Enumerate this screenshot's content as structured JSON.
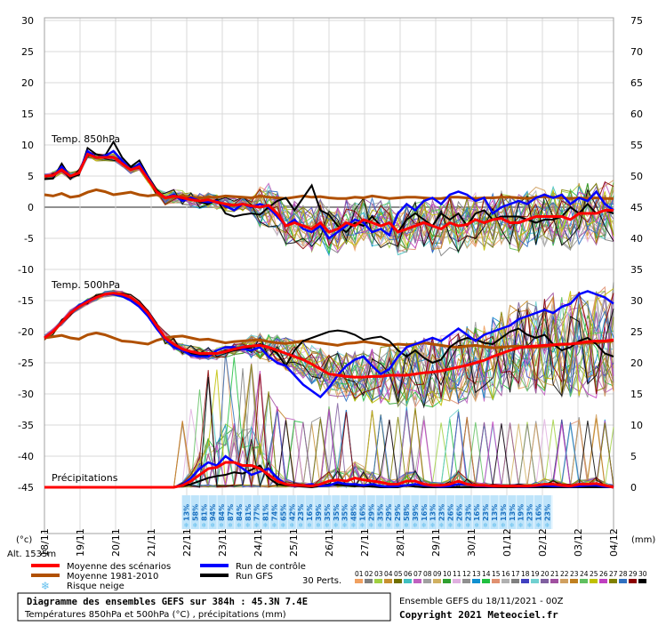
{
  "chart_data": {
    "type": "line",
    "title": "Diagramme des ensembles GEFS sur 384h : 45.3N 7.4E",
    "subtitle": "Températures 850hPa et 500hPa (°C) , précipitations (mm)",
    "run_label": "Ensemble GEFS du 18/11/2021 - 00Z",
    "copyright": "Copyright 2021 Meteociel.fr",
    "altitude_label": "Alt. 1535m",
    "left_unit": "(°c)",
    "right_unit": "(mm)",
    "left_axis": {
      "ticks": [
        30,
        25,
        20,
        15,
        10,
        5,
        0,
        -5,
        -10,
        -15,
        -20,
        -25,
        -30,
        -35,
        -40,
        -45
      ],
      "range": [
        -45,
        30
      ]
    },
    "right_axis": {
      "ticks": [
        75,
        70,
        65,
        60,
        55,
        50,
        45,
        40,
        35,
        30,
        25,
        20,
        15,
        10,
        5,
        0
      ],
      "range": [
        0,
        75
      ]
    },
    "x_labels": [
      "18/11",
      "19/11",
      "20/11",
      "21/11",
      "22/11",
      "23/11",
      "24/11",
      "25/11",
      "26/11",
      "27/11",
      "28/11",
      "29/11",
      "30/11",
      "01/12",
      "02/12",
      "03/12",
      "04/12"
    ],
    "panel_labels": {
      "t850": "Temp. 850hPa",
      "t500": "Temp. 500hPa",
      "precip": "Précipitations"
    },
    "snow_risk": [
      "13%",
      "58%",
      "81%",
      "94%",
      "84%",
      "87%",
      "84%",
      "81%",
      "77%",
      "81%",
      "74%",
      "65%",
      "42%",
      "23%",
      "16%",
      "39%",
      "35%",
      "35%",
      "35%",
      "48%",
      "16%",
      "29%",
      "35%",
      "29%",
      "29%",
      "58%",
      "39%",
      "16%",
      "13%",
      "23%",
      "26%",
      "26%",
      "23%",
      "16%",
      "23%",
      "13%",
      "13%",
      "13%",
      "19%",
      "23%",
      "16%",
      "23%"
    ],
    "t850_mean": [
      5,
      5.1,
      6,
      5,
      5.5,
      8.5,
      8,
      8,
      8,
      7,
      6,
      6.5,
      4.5,
      2.5,
      1.5,
      1.8,
      1.5,
      1.2,
      1,
      1.2,
      0.8,
      0.5,
      0.3,
      0.5,
      0.2,
      0,
      0.3,
      -1,
      -3,
      -2.5,
      -3,
      -3.5,
      -2.5,
      -4,
      -3.5,
      -2.5,
      -3,
      -2,
      -2.5,
      -3,
      -2.5,
      -4,
      -3.5,
      -3,
      -2.5,
      -3,
      -3.5,
      -2.5,
      -3,
      -2.8,
      -2,
      -2.5,
      -2,
      -1.8,
      -2.5,
      -2.5,
      -2,
      -1.5,
      -1.5,
      -1.5,
      -1.5,
      -2,
      -1,
      -1,
      -1,
      -0.5,
      -0.5
    ],
    "t850_gfs": [
      4.5,
      4.6,
      7,
      4.8,
      5.2,
      9.5,
      8.5,
      8.2,
      10.5,
      8,
      6.5,
      7.5,
      5,
      2.8,
      1.5,
      2,
      1.3,
      1.5,
      0.8,
      0.5,
      1.2,
      -1,
      -1.5,
      -1.2,
      -1,
      -1.2,
      0,
      1,
      1.5,
      -0.5,
      1.5,
      3.5,
      -0.5,
      -1.2,
      -3,
      -4,
      -2.5,
      -3,
      -1.5,
      -3,
      -2.5,
      -4,
      -2,
      -1,
      -2,
      -3,
      -1,
      -2,
      -1,
      -3,
      -1,
      -0.5,
      -2,
      -1.5,
      -1.5,
      -1.5,
      -2,
      -2.5,
      -2,
      -2,
      -1.5,
      0,
      -1,
      0.5,
      -1,
      -0.5,
      -1
    ],
    "t850_control": [
      5,
      5,
      6.5,
      5,
      5.5,
      9,
      8,
      8.2,
      9,
      7.5,
      6,
      7,
      4.8,
      2.5,
      1.5,
      2,
      1,
      1.5,
      1,
      0.8,
      1,
      0.2,
      -0.5,
      0.5,
      0,
      0.5,
      0,
      -1.5,
      -3,
      -2,
      -3.5,
      -4,
      -3,
      -5,
      -4,
      -3,
      -2,
      -2.5,
      -4,
      -3.5,
      -4.5,
      -1,
      0.5,
      -0.5,
      1,
      1.5,
      0.5,
      2,
      2.5,
      2,
      1,
      1.5,
      -1,
      0,
      0.5,
      1,
      0.5,
      1.5,
      2,
      1.5,
      2,
      0.5,
      1.5,
      1,
      2.5,
      0.5,
      -0.5
    ],
    "t850_clim": [
      2,
      1.8,
      2.2,
      1.6,
      1.8,
      2.4,
      2.8,
      2.5,
      2,
      2.2,
      2.4,
      2,
      1.8,
      2,
      1.5,
      1.6,
      1.8,
      1.6,
      1.5,
      1.6,
      1.6,
      1.8,
      1.7,
      1.6,
      1.5,
      1.8,
      1.6,
      1.5,
      1.4,
      1.6,
      1.8,
      1.6,
      1.7,
      1.5,
      1.4,
      1.4,
      1.6,
      1.5,
      1.8,
      1.6,
      1.4,
      1.5,
      1.6,
      1.6,
      1.5,
      1.4,
      1.4,
      1.6,
      1.6,
      1.5,
      1.4,
      1.5,
      1.5,
      1.6,
      1.6,
      1.5,
      1.4,
      1.6,
      1.7,
      1.6,
      1.5,
      1.4,
      1.5,
      1.4,
      1.5,
      1.4,
      1.4
    ],
    "t500_mean": [
      -21,
      -20,
      -18.5,
      -17,
      -16,
      -15.2,
      -14.5,
      -14,
      -13.8,
      -14,
      -14.5,
      -15.5,
      -17,
      -19,
      -21,
      -22,
      -22.8,
      -23.2,
      -23.5,
      -23.5,
      -23.5,
      -23.2,
      -22.8,
      -22.5,
      -22.3,
      -22.2,
      -22.5,
      -23,
      -23.5,
      -24,
      -24.5,
      -25.2,
      -26,
      -26.8,
      -27,
      -27.2,
      -27.3,
      -27.3,
      -27.2,
      -27.2,
      -27,
      -27,
      -27,
      -26.8,
      -26.6,
      -26.5,
      -26.3,
      -26,
      -25.7,
      -25.4,
      -25,
      -24.6,
      -24,
      -23.5,
      -23,
      -22.6,
      -22.4,
      -22.3,
      -22.2,
      -22.1,
      -22,
      -22,
      -21.8,
      -21.6,
      -21.5,
      -21.5,
      -21.3
    ],
    "t500_gfs": [
      -21,
      -20,
      -18.5,
      -17,
      -15.8,
      -15,
      -14.3,
      -14,
      -14,
      -14.2,
      -15,
      -16,
      -17.5,
      -19.5,
      -21,
      -22.2,
      -22.8,
      -23.5,
      -23.8,
      -23.8,
      -23.5,
      -23,
      -23,
      -22.8,
      -22.5,
      -22,
      -22.5,
      -23.5,
      -25.5,
      -23,
      -21.5,
      -21,
      -20.5,
      -20,
      -19.8,
      -20,
      -20.5,
      -21.3,
      -21,
      -20.8,
      -21.5,
      -23,
      -24,
      -23,
      -24.2,
      -25,
      -24.5,
      -22.5,
      -21.5,
      -21,
      -21.3,
      -21.8,
      -22,
      -21,
      -20,
      -19.5,
      -20.5,
      -21,
      -20.5,
      -22,
      -23,
      -22.5,
      -21.5,
      -21,
      -22,
      -23.5,
      -24
    ],
    "t500_control": [
      -21,
      -20,
      -18.5,
      -17,
      -15.8,
      -15,
      -14.5,
      -14,
      -14,
      -14.3,
      -15,
      -16,
      -17.5,
      -19.5,
      -21.2,
      -22.5,
      -23,
      -23.8,
      -24,
      -24,
      -23,
      -22.5,
      -22.5,
      -22.8,
      -23,
      -22.5,
      -24,
      -25,
      -25.5,
      -27,
      -28.5,
      -29.5,
      -30.5,
      -29,
      -27,
      -25.5,
      -24.5,
      -24,
      -25.5,
      -26.8,
      -26,
      -24,
      -22.5,
      -22,
      -21.5,
      -21,
      -21.5,
      -20.5,
      -19.5,
      -20.5,
      -21.5,
      -20.5,
      -20,
      -19.5,
      -19,
      -18,
      -17.5,
      -17,
      -16.5,
      -17,
      -16,
      -15.5,
      -14,
      -13.5,
      -14,
      -14.5,
      -15.5
    ],
    "t500_clim": [
      -21,
      -20.8,
      -20.6,
      -21,
      -21.2,
      -20.5,
      -20.2,
      -20.5,
      -21,
      -21.5,
      -21.6,
      -21.8,
      -22,
      -21.4,
      -21,
      -20.8,
      -20.7,
      -21,
      -21.3,
      -21.2,
      -21.5,
      -21.8,
      -21.6,
      -21.5,
      -21.4,
      -21.3,
      -21.6,
      -21.8,
      -21.9,
      -21.7,
      -21.5,
      -21.6,
      -21.8,
      -22,
      -22.2,
      -21.9,
      -21.8,
      -21.6,
      -21.8,
      -22,
      -22.2,
      -22,
      -22.1,
      -22,
      -21.8,
      -22,
      -22.2,
      -22.4,
      -22.5,
      -22.3,
      -22.2,
      -22.4,
      -22.6,
      -22.5,
      -22.4,
      -22.3,
      -22.5,
      -22.5,
      -22.4,
      -22.2,
      -22.1,
      -22,
      -21.9,
      -21.8,
      -21.8,
      -21.6,
      -21.5
    ],
    "precip_mean": [
      0,
      0,
      0,
      0,
      0,
      0,
      0,
      0,
      0,
      0,
      0,
      0,
      0,
      0,
      0,
      0,
      0.3,
      1,
      2,
      3,
      3.2,
      4,
      4,
      3.5,
      3.5,
      3,
      2,
      1,
      0.5,
      0.3,
      0.3,
      0.2,
      0.5,
      1,
      1.2,
      1,
      1.5,
      1.2,
      1,
      0.8,
      0.5,
      0.5,
      1,
      1,
      0.5,
      0.3,
      0.3,
      0.5,
      1,
      0.5,
      0.3,
      0.3,
      0.2,
      0.2,
      0.2,
      0.2,
      0.2,
      0.3,
      0.5,
      0.5,
      0.3,
      0.2,
      0.5,
      0.5,
      0.6,
      0.3,
      0
    ],
    "precip_gfs": [
      0,
      0,
      0,
      0,
      0,
      0,
      0,
      0,
      0,
      0,
      0,
      0,
      0,
      0,
      0,
      0,
      0.2,
      0.5,
      1,
      1.5,
      1.8,
      2,
      2.4,
      2.2,
      2.8,
      3.5,
      1.5,
      0.5,
      0.3,
      0.2,
      0.1,
      0,
      0.2,
      0.5,
      0.4,
      0.3,
      0.2,
      0.2,
      0.1,
      0,
      0,
      0,
      0.3,
      0.1,
      0,
      0,
      0,
      0,
      0,
      0,
      0,
      0,
      0,
      0,
      0,
      0,
      0,
      0,
      0,
      0,
      0,
      0,
      0,
      0,
      0,
      0,
      0
    ],
    "precip_control": [
      0,
      0,
      0,
      0,
      0,
      0,
      0,
      0,
      0,
      0,
      0,
      0,
      0,
      0,
      0,
      0,
      0.4,
      1.5,
      3,
      4,
      3.5,
      5,
      4,
      3,
      2,
      2.5,
      3,
      1.5,
      0.5,
      0.2,
      0.3,
      0.5,
      0.2,
      0.3,
      0.8,
      0.5,
      0.5,
      0.3,
      0.5,
      0.2,
      0.1,
      0.2,
      0.3,
      0.5,
      0.3,
      0.2,
      0.1,
      0.2,
      0.5,
      0.4,
      0.2,
      0.2,
      0.1,
      0.2,
      0.2,
      0.1,
      0.1,
      0.2,
      0.3,
      0.2,
      0.2,
      0.1,
      0.2,
      0.3,
      0.3,
      0.1,
      0
    ],
    "legend": {
      "mean": "Moyenne des scénarios",
      "clim": "Moyenne 1981-2010",
      "snow": "Risque neige",
      "control": "Run de contrôle",
      "gfs": "Run GFS",
      "perts": "30 Perts."
    },
    "member_labels": [
      "01",
      "02",
      "03",
      "04",
      "05",
      "06",
      "07",
      "08",
      "09",
      "10",
      "11",
      "12",
      "13",
      "14",
      "15",
      "16",
      "17",
      "18",
      "19",
      "20",
      "21",
      "22",
      "23",
      "24",
      "25",
      "26",
      "27",
      "28",
      "29",
      "30"
    ],
    "member_colors": [
      "#f0a060",
      "#808080",
      "#a0d040",
      "#c89030",
      "#707000",
      "#40c0c0",
      "#c060c0",
      "#a0a0a0",
      "#d0b060",
      "#30a030",
      "#e0b0e0",
      "#909090",
      "#1090d0",
      "#20c040",
      "#e09070",
      "#b0b0b0",
      "#808080",
      "#4040c0",
      "#70d0d0",
      "#8060a0",
      "#a050a0",
      "#d0a060",
      "#c08020",
      "#60c060",
      "#c0c000",
      "#c040c0",
      "#808000",
      "#3070c0",
      "#8b0000",
      "#000000"
    ],
    "colors": {
      "mean": "#ff0000",
      "clim": "#b05000",
      "control": "#0000ff",
      "gfs": "#000000",
      "snow": "#66c0ee"
    }
  }
}
